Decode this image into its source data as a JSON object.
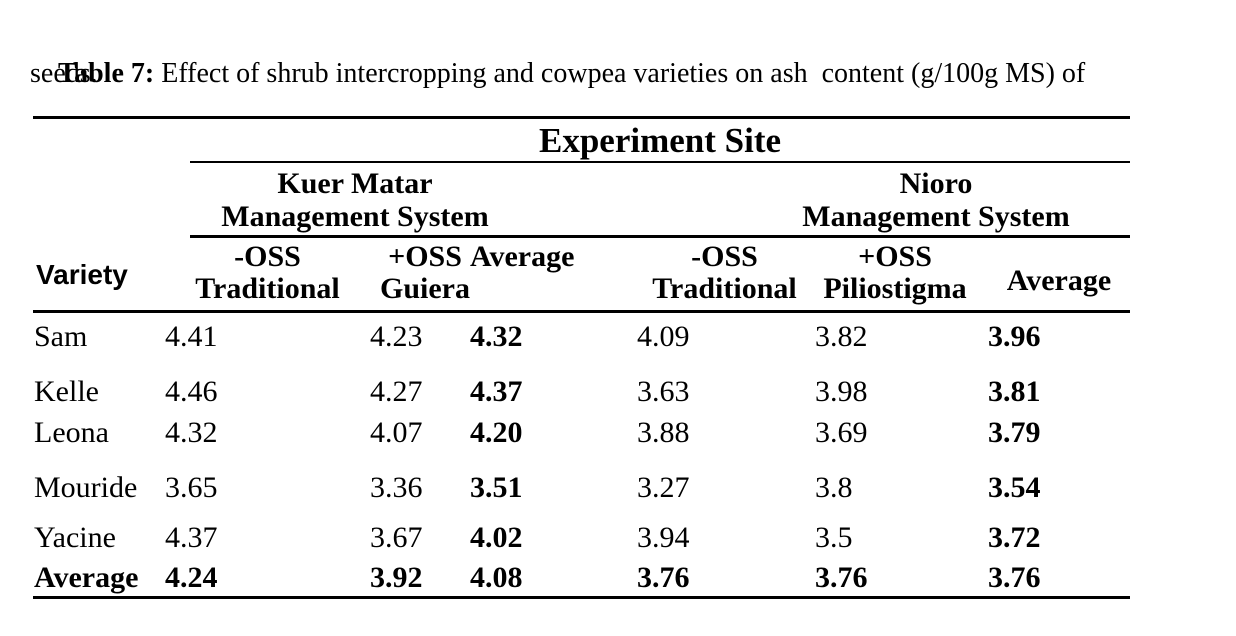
{
  "caption": {
    "label": "Table 7:",
    "text": " Effect of shrub intercropping and cowpea varieties on ash  content (g/100g MS) of",
    "line2": "seeds."
  },
  "table": {
    "header": {
      "experiment_site": "Experiment Site",
      "site1_name": "Kuer Matar",
      "site1_system": "Management System",
      "site2_name": "Nioro",
      "site2_system": "Management System",
      "variety": "Variety",
      "s1c1_l1": "-OSS",
      "s1c1_l2": "Traditional",
      "s1c2_l1": "+OSS",
      "s1c2_l2": "Guiera",
      "s1_avg": "Average",
      "s2c1_l1": "-OSS",
      "s2c1_l2": "Traditional",
      "s2c2_l1": "+OSS",
      "s2c2_l2": "Piliostigma",
      "s2_avg": "Average"
    },
    "rows": [
      {
        "cells": [
          "Sam",
          "4.41",
          "4.23",
          "4.32",
          "4.09",
          "3.82",
          "3.96"
        ]
      },
      {
        "cells": [
          "Kelle",
          "4.46",
          "4.27",
          "4.37",
          "3.63",
          "3.98",
          "3.81"
        ]
      },
      {
        "cells": [
          "Leona",
          "4.32",
          "4.07",
          "4.20",
          "3.88",
          "3.69",
          "3.79"
        ]
      },
      {
        "cells": [
          "Mouride",
          "3.65",
          "3.36",
          "3.51",
          "3.27",
          "3.8",
          "3.54"
        ]
      },
      {
        "cells": [
          "Yacine",
          "4.37",
          "3.67",
          "4.02",
          "3.94",
          "3.5",
          "3.72"
        ]
      },
      {
        "cells": [
          "Average",
          "4.24",
          "3.92",
          "4.08",
          "3.76",
          "3.76",
          "3.76"
        ]
      }
    ]
  }
}
